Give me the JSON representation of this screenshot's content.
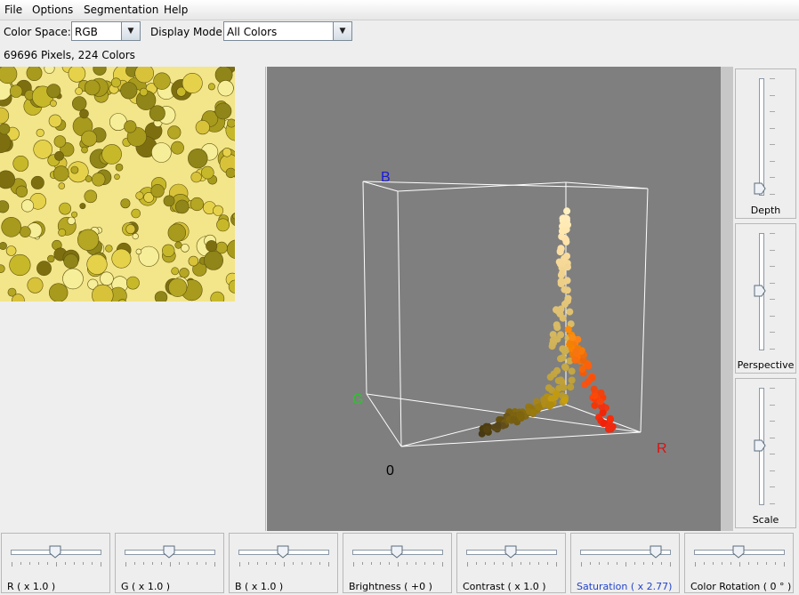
{
  "menu": [
    "File",
    "Options",
    "Segmentation",
    "Help"
  ],
  "toolbar": {
    "color_space_label": "Color Space:",
    "color_space_value": "RGB",
    "display_mode_label": "Display Mode:",
    "display_mode_value": "All Colors"
  },
  "info": "69696 Pixels,  224 Colors",
  "axes": {
    "b": "B",
    "g": "G",
    "r": "R",
    "origin": "0"
  },
  "axis_colors": {
    "b": "#1a1ad9",
    "g": "#22cc22",
    "r": "#dd1111",
    "origin": "#000000"
  },
  "side_sliders": [
    {
      "label": "Depth",
      "level": 0.05
    },
    {
      "label": "Perspective",
      "level": 0.5
    },
    {
      "label": "Scale",
      "level": 0.5
    }
  ],
  "bottom_sliders": [
    {
      "label": "R ( x 1.0 )",
      "level": 0.5,
      "highlight": false
    },
    {
      "label": "G ( x 1.0 )",
      "level": 0.5,
      "highlight": false
    },
    {
      "label": "B ( x 1.0 )",
      "level": 0.5,
      "highlight": false
    },
    {
      "label": "Brightness ( +0 )",
      "level": 0.5,
      "highlight": false
    },
    {
      "label": "Contrast ( x 1.0 )",
      "level": 0.5,
      "highlight": false
    },
    {
      "label": "Saturation  ( x 2.77)",
      "level": 0.85,
      "highlight": true
    },
    {
      "label": "Color Rotation  ( 0 ° )",
      "level": 0.5,
      "highlight": false
    }
  ],
  "highlight_color": "#2244cc"
}
